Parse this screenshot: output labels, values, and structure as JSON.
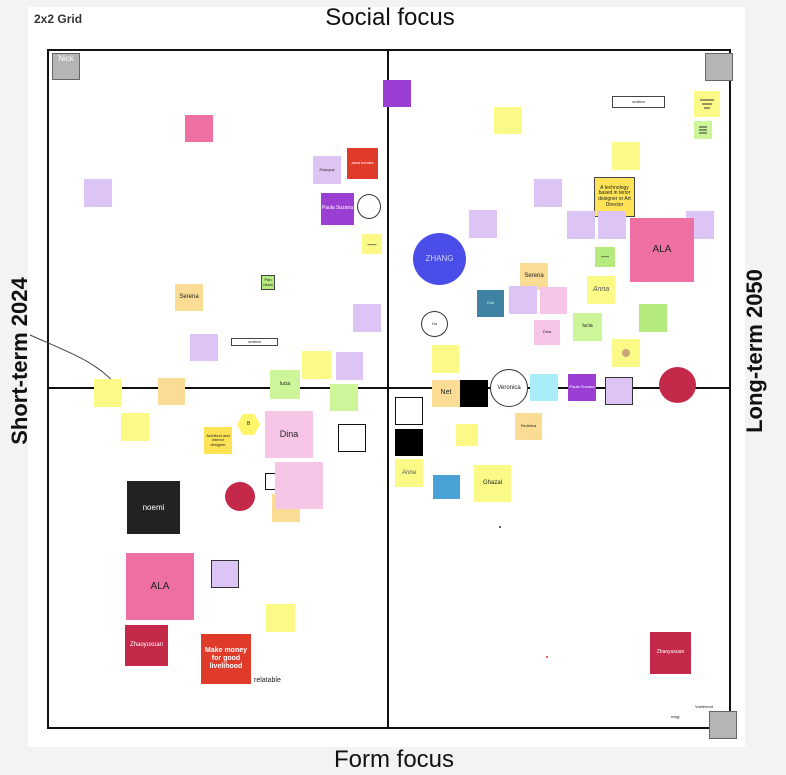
{
  "board": {
    "title": "2x2 Grid"
  },
  "axes": {
    "top": "Social focus",
    "bottom": "Form focus",
    "left": "Short-term 2024",
    "right": "Long-term 2050"
  },
  "notes": {
    "nick": "Nick",
    "zhaoyue": "Zhaoyue",
    "red_small": "anca koroba",
    "paula1": "Paula Suzana",
    "dash1": "—",
    "pan": "Pan vision",
    "serena_left": "Serena",
    "andrea_left": "andrea",
    "lucia_left": "lucia",
    "architect": "Architect and interior designer",
    "b_hex": "B",
    "dina": "Dina",
    "noemi": "noemi",
    "ala_left": "ALA",
    "zhaoyuxuan_left": "Zhaoyuxuan",
    "make_money": "Make money for good livelihood",
    "relatable": "relatable",
    "andrea_right": "andrea",
    "tech": "A technology based in terior designer or Art Director",
    "zhang": "ZHANG",
    "serena_right": "Serena",
    "ala_right": "ALA",
    "dash2": "—",
    "anna1": "Anna",
    "lucia_right": "lucia",
    "hu": "Hu",
    "elia": "Elia",
    "dina_small": "Dina",
    "net": "Net",
    "veronica": "Veronica",
    "paula2": "Paula Suzana",
    "federica": "Federica",
    "anna2": "Anna",
    "ghazal": "Ghazal",
    "zhaoyuxuan_right": "Zhaoyuxuan",
    "voldemort": "Voldemort",
    "edgy": "edgy"
  }
}
